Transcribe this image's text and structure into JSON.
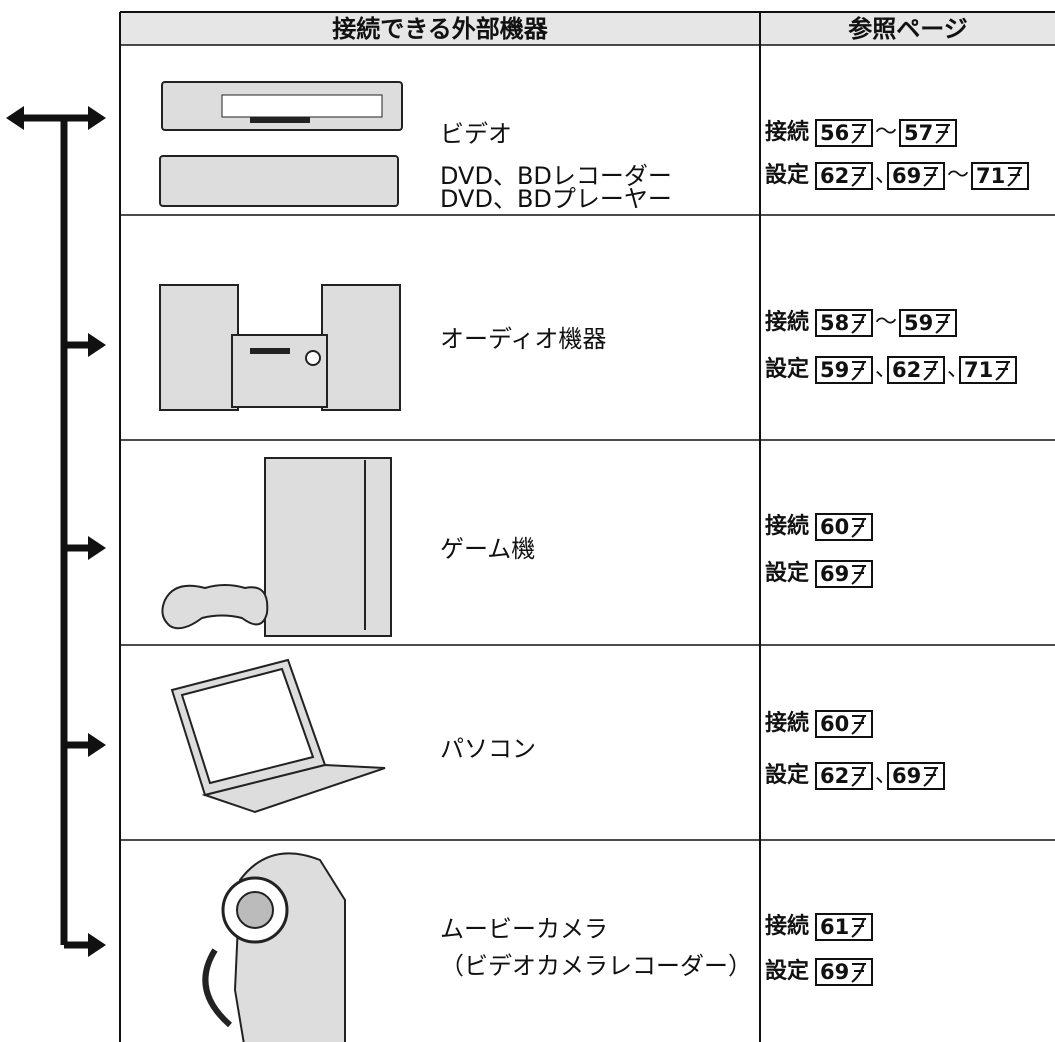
{
  "table": {
    "headers": [
      "接続できる外部機器",
      "参照ページ"
    ],
    "rows": [
      {
        "device": [
          "ビデオ",
          "DVD、BDレコーダー",
          "DVD、BDプレーヤー"
        ],
        "refs": [
          {
            "label": "接続",
            "items": [
              56,
              "～",
              57
            ]
          },
          {
            "label": "設定",
            "items": [
              62,
              "、",
              69,
              "～",
              71
            ]
          }
        ]
      },
      {
        "device": [
          "オーディオ機器"
        ],
        "refs": [
          {
            "label": "接続",
            "items": [
              58,
              "～",
              59
            ]
          },
          {
            "label": "設定",
            "items": [
              59,
              "、",
              62,
              "、",
              71
            ]
          }
        ]
      },
      {
        "device": [
          "ゲーム機"
        ],
        "refs": [
          {
            "label": "接続",
            "items": [
              60
            ]
          },
          {
            "label": "設定",
            "items": [
              69
            ]
          }
        ]
      },
      {
        "device": [
          "パソコン"
        ],
        "refs": [
          {
            "label": "接続",
            "items": [
              60
            ]
          },
          {
            "label": "設定",
            "items": [
              62,
              "、",
              69
            ]
          }
        ]
      },
      {
        "device": [
          "ムービーカメラ",
          "（ビデオカメラレコーダー）"
        ],
        "refs": [
          {
            "label": "接続",
            "items": [
              61
            ]
          },
          {
            "label": "設定",
            "items": [
              69
            ]
          }
        ]
      }
    ]
  }
}
